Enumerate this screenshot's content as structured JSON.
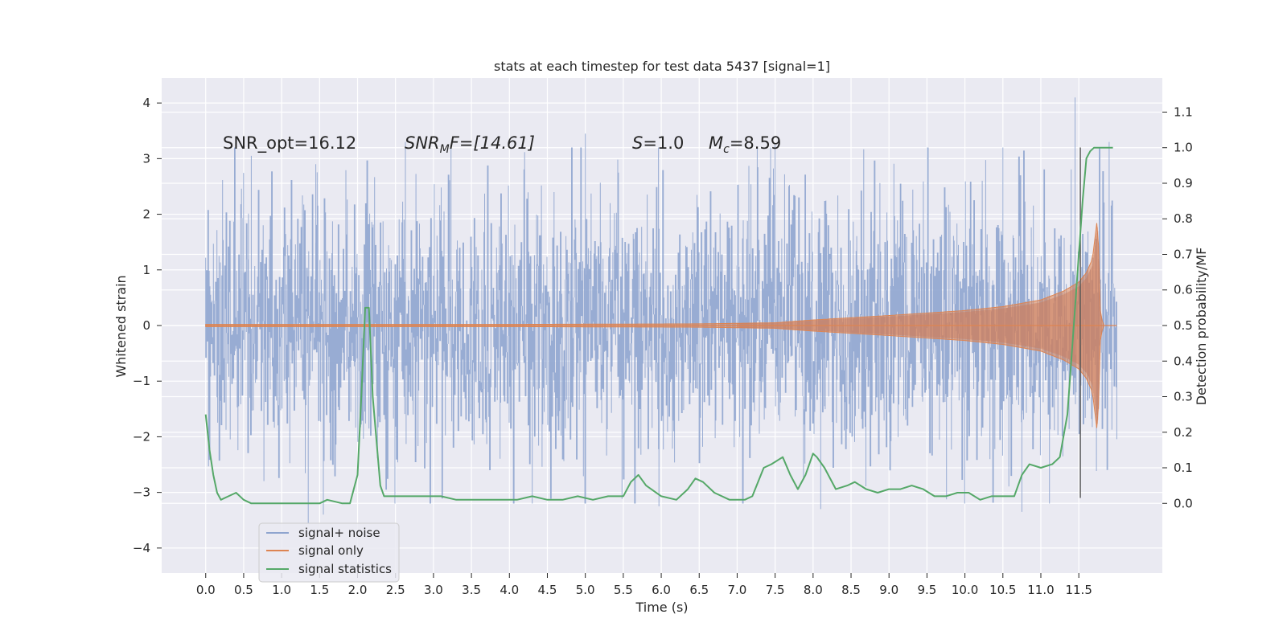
{
  "chart_data": {
    "type": "line",
    "title": "stats at each timestep for test data 5437 [signal=1]",
    "xlabel": "Time (s)",
    "ylabel": "Whitened strain",
    "y2label": "Detection probability/MF",
    "xlim": [
      -0.58,
      12.6
    ],
    "ylim": [
      -4.45,
      4.45
    ],
    "y2lim": [
      -0.196,
      1.196
    ],
    "x_ticks": [
      "0.0",
      "0.5",
      "1.0",
      "1.5",
      "2.0",
      "2.5",
      "3.0",
      "3.5",
      "4.0",
      "4.5",
      "5.0",
      "5.5",
      "6.0",
      "6.5",
      "7.0",
      "7.5",
      "8.0",
      "8.5",
      "9.0",
      "9.5",
      "10.0",
      "10.5",
      "11.0",
      "11.5"
    ],
    "y_ticks": [
      "4",
      "3",
      "2",
      "1",
      "0",
      "−1",
      "−2",
      "−3",
      "−4"
    ],
    "y2_ticks": [
      "1.1",
      "1.0",
      "0.9",
      "0.8",
      "0.7",
      "0.6",
      "0.5",
      "0.4",
      "0.3",
      "0.2",
      "0.1",
      "0.0"
    ],
    "grid": true,
    "legend_position": "bottom-left",
    "annotations": {
      "snr_opt": "SNR_opt=16.12",
      "snr_mf_sym": "SNR",
      "snr_mf_sub": "M",
      "snr_mf_rest": "F=[14.61]",
      "s_sym": "S",
      "s_rest": "=1.0",
      "mc_sym": "M",
      "mc_sub": "c",
      "mc_rest": "=8.59"
    },
    "event_time": 11.52,
    "series": [
      {
        "name": "signal+ noise",
        "color": "#8fa5cf",
        "axis": "left",
        "noise_std": 1.0,
        "peaks": [
          [
            0.0,
            1.22
          ],
          [
            0.6,
            3.05
          ],
          [
            1.45,
            2.9
          ],
          [
            2.63,
            3.3
          ],
          [
            5.0,
            3.45
          ],
          [
            7.5,
            3.25
          ],
          [
            10.5,
            3.2
          ],
          [
            11.45,
            4.1
          ],
          [
            11.9,
            3.3
          ],
          [
            1.35,
            -3.55
          ],
          [
            1.55,
            -3.4
          ],
          [
            10.75,
            -3.35
          ],
          [
            8.1,
            -3.3
          ],
          [
            5.97,
            -3.25
          ],
          [
            11.52,
            -2.9
          ]
        ]
      },
      {
        "name": "signal only",
        "color": "#dd8452",
        "axis": "left",
        "envelope": [
          [
            0.0,
            0.02
          ],
          [
            4.0,
            0.02
          ],
          [
            6.5,
            0.03
          ],
          [
            7.5,
            0.05
          ],
          [
            8.0,
            0.1
          ],
          [
            9.0,
            0.18
          ],
          [
            10.0,
            0.27
          ],
          [
            10.5,
            0.34
          ],
          [
            11.0,
            0.46
          ],
          [
            11.3,
            0.62
          ],
          [
            11.5,
            0.78
          ],
          [
            11.6,
            0.95
          ],
          [
            11.68,
            1.2
          ],
          [
            11.75,
            2.0
          ],
          [
            11.78,
            0.3
          ],
          [
            11.82,
            0.0
          ],
          [
            12.0,
            0.0
          ]
        ]
      },
      {
        "name": "signal statistics",
        "color": "#55a868",
        "axis": "right",
        "x": [
          0.0,
          0.05,
          0.1,
          0.15,
          0.2,
          0.3,
          0.4,
          0.5,
          0.6,
          0.7,
          0.8,
          1.0,
          1.2,
          1.4,
          1.5,
          1.6,
          1.8,
          1.9,
          2.0,
          2.05,
          2.1,
          2.15,
          2.2,
          2.3,
          2.35,
          2.4,
          2.5,
          2.7,
          2.9,
          3.1,
          3.3,
          3.5,
          3.7,
          3.9,
          4.1,
          4.3,
          4.5,
          4.7,
          4.9,
          5.1,
          5.3,
          5.5,
          5.6,
          5.7,
          5.8,
          6.0,
          6.2,
          6.35,
          6.45,
          6.55,
          6.7,
          6.9,
          7.1,
          7.2,
          7.35,
          7.45,
          7.6,
          7.7,
          7.8,
          7.9,
          8.0,
          8.05,
          8.15,
          8.3,
          8.45,
          8.55,
          8.7,
          8.85,
          9.0,
          9.15,
          9.3,
          9.45,
          9.6,
          9.75,
          9.9,
          10.05,
          10.2,
          10.35,
          10.5,
          10.65,
          10.75,
          10.85,
          11.0,
          11.15,
          11.25,
          11.35,
          11.45,
          11.55,
          11.6,
          11.65,
          11.7,
          11.8,
          11.9,
          11.95
        ],
        "values": [
          0.25,
          0.15,
          0.08,
          0.03,
          0.01,
          0.02,
          0.03,
          0.01,
          0.0,
          0.0,
          0.0,
          0.0,
          0.0,
          0.0,
          0.0,
          0.01,
          0.0,
          0.0,
          0.08,
          0.3,
          0.55,
          0.55,
          0.3,
          0.05,
          0.02,
          0.02,
          0.02,
          0.02,
          0.02,
          0.02,
          0.01,
          0.01,
          0.01,
          0.01,
          0.01,
          0.02,
          0.01,
          0.01,
          0.02,
          0.01,
          0.02,
          0.02,
          0.06,
          0.08,
          0.05,
          0.02,
          0.01,
          0.04,
          0.07,
          0.06,
          0.03,
          0.01,
          0.01,
          0.02,
          0.1,
          0.11,
          0.13,
          0.08,
          0.04,
          0.08,
          0.14,
          0.13,
          0.1,
          0.04,
          0.05,
          0.06,
          0.04,
          0.03,
          0.04,
          0.04,
          0.05,
          0.04,
          0.02,
          0.02,
          0.03,
          0.03,
          0.01,
          0.02,
          0.02,
          0.02,
          0.08,
          0.11,
          0.1,
          0.11,
          0.13,
          0.25,
          0.55,
          0.85,
          0.97,
          0.99,
          1.0,
          1.0,
          1.0,
          1.0
        ]
      }
    ]
  }
}
